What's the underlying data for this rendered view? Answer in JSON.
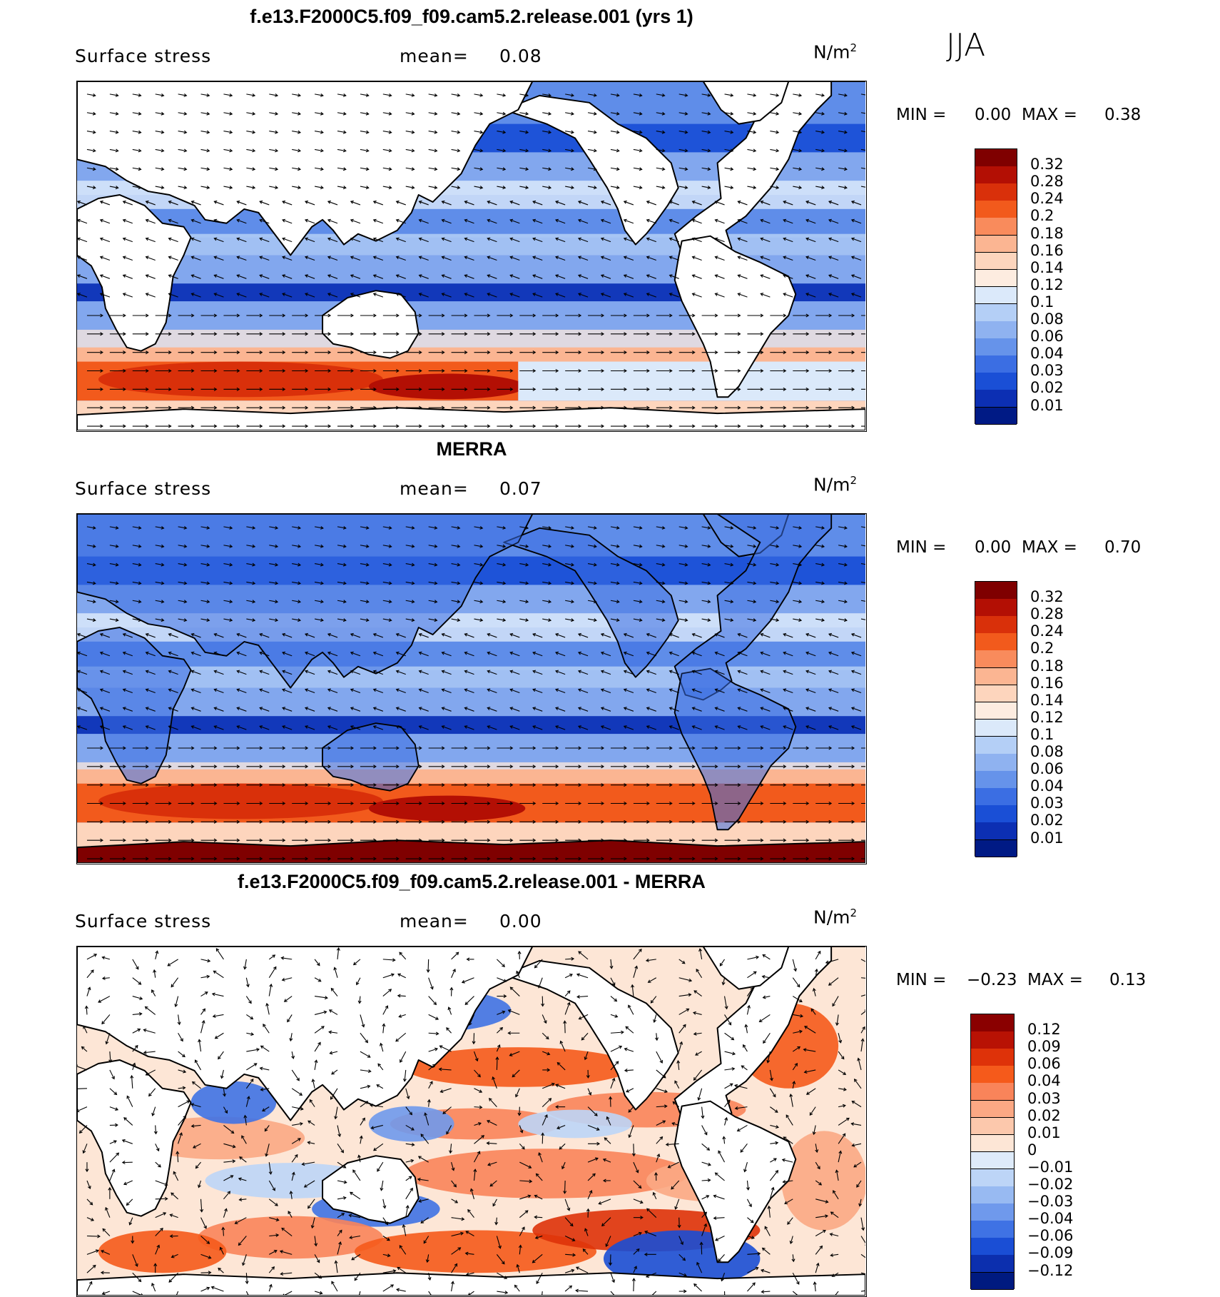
{
  "season": "JJA",
  "chart_data": [
    {
      "type": "heatmap",
      "title": "f.e13.F2000C5.f09_f09.cam5.2.release.001 (yrs 1)",
      "variable": "Surface stress",
      "mean_label": "mean=",
      "mean": "0.08",
      "units": "N/m",
      "units_exp": "2",
      "min_label": "MIN =",
      "min": "0.00",
      "max_label": "MAX =",
      "max": "0.38",
      "colorbar": {
        "ticks": [
          "0.32",
          "0.28",
          "0.24",
          "0.2",
          "0.18",
          "0.16",
          "0.14",
          "0.12",
          "0.1",
          "0.08",
          "0.06",
          "0.04",
          "0.03",
          "0.02",
          "0.01"
        ],
        "colors": [
          "#7f0000",
          "#b30f04",
          "#d9300a",
          "#f25a1c",
          "#f98b5c",
          "#fbb592",
          "#fdd5bd",
          "#fdece0",
          "#dbe9fa",
          "#b4cff6",
          "#8fb2f0",
          "#6693ea",
          "#3b6ee3",
          "#1a4fd6",
          "#0c2fb3",
          "#001a85"
        ]
      },
      "mean_field_coloring": "blue over most oceans, red band in Southern Ocean 40-60S"
    },
    {
      "type": "heatmap",
      "title": "MERRA",
      "variable": "Surface stress",
      "mean_label": "mean=",
      "mean": "0.07",
      "units": "N/m",
      "units_exp": "2",
      "min_label": "MIN =",
      "min": "0.00",
      "max_label": "MAX =",
      "max": "0.70",
      "colorbar": {
        "ticks": [
          "0.32",
          "0.28",
          "0.24",
          "0.2",
          "0.18",
          "0.16",
          "0.14",
          "0.12",
          "0.1",
          "0.08",
          "0.06",
          "0.04",
          "0.03",
          "0.02",
          "0.01"
        ],
        "colors": [
          "#7f0000",
          "#b30f04",
          "#d9300a",
          "#f25a1c",
          "#f98b5c",
          "#fbb592",
          "#fdd5bd",
          "#fdece0",
          "#dbe9fa",
          "#b4cff6",
          "#8fb2f0",
          "#6693ea",
          "#3b6ee3",
          "#1a4fd6",
          "#0c2fb3",
          "#001a85"
        ]
      }
    },
    {
      "type": "heatmap",
      "title": "f.e13.F2000C5.f09_f09.cam5.2.release.001 - MERRA",
      "variable": "Surface stress",
      "mean_label": "mean=",
      "mean": "0.00",
      "units": "N/m",
      "units_exp": "2",
      "min_label": "MIN =",
      "min": "−0.23",
      "max_label": "MAX =",
      "max": "0.13",
      "colorbar": {
        "ticks": [
          "0.12",
          "0.09",
          "0.06",
          "0.04",
          "0.03",
          "0.02",
          "0.01",
          "0",
          "−0.01",
          "−0.02",
          "−0.03",
          "−0.04",
          "−0.06",
          "−0.09",
          "−0.12"
        ],
        "colors": [
          "#8a0000",
          "#b81204",
          "#de3209",
          "#f55a1b",
          "#f9845a",
          "#fba884",
          "#fcc8ac",
          "#fde6d6",
          "#deebfa",
          "#bdd5f7",
          "#98baf2",
          "#6f99ec",
          "#3f72e4",
          "#1a4ed5",
          "#0c2fae",
          "#001a80"
        ]
      }
    }
  ]
}
